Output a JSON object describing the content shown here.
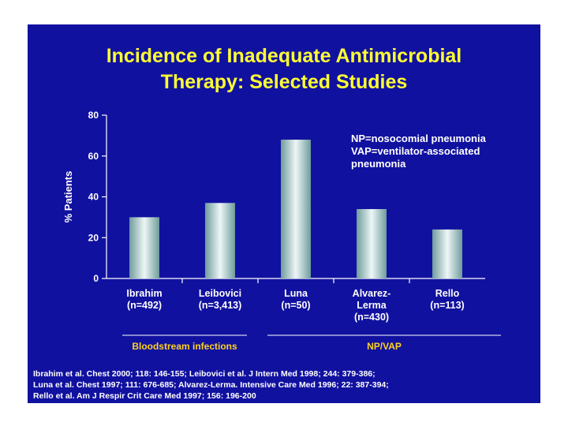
{
  "slide": {
    "title_lines": [
      "Incidence of Inadequate Antimicrobial",
      "Therapy: Selected Studies"
    ],
    "annotation_lines": [
      "NP=nosocomial pneumonia",
      "VAP=ventilator-associated",
      "pneumonia"
    ],
    "reference_lines": [
      "Ibrahim et al. Chest 2000; 118: 146-155; Leibovici et al. J Intern Med 1998; 244: 379-386;",
      "Luna et al. Chest 1997; 111: 676-685; Alvarez-Lerma. Intensive Care Med 1996; 22: 387-394;",
      "Rello et al. Am J Respir Crit Care Med 1997; 156: 196-200"
    ]
  },
  "colors": {
    "background": "#1111a0",
    "title": "#ffff33",
    "text": "#ffffff",
    "group_label": "#ffd21e",
    "bar_dark": "#6f9c9c",
    "bar_light": "#eef6f6"
  },
  "chart_data": {
    "type": "bar",
    "categories": [
      "Ibrahim",
      "Leibovici",
      "Luna",
      "Alvarez-Lerma",
      "Rello"
    ],
    "category_label_lines": [
      [
        "Ibrahim",
        "(n=492)"
      ],
      [
        "Leibovici",
        "(n=3,413)"
      ],
      [
        "Luna",
        "(n=50)"
      ],
      [
        "Alvarez-",
        "Lerma",
        "(n=430)"
      ],
      [
        "Rello",
        "(n=113)"
      ]
    ],
    "values": [
      30,
      37,
      68,
      34,
      24
    ],
    "ylabel": "% Patients",
    "ylim": [
      0,
      80
    ],
    "yticks": [
      0,
      20,
      40,
      60,
      80
    ],
    "grid": false,
    "groups": [
      {
        "label": "Bloodstream infections",
        "categories": [
          "Ibrahim",
          "Leibovici"
        ]
      },
      {
        "label": "NP/VAP",
        "categories": [
          "Luna",
          "Alvarez-Lerma",
          "Rello"
        ]
      }
    ]
  }
}
